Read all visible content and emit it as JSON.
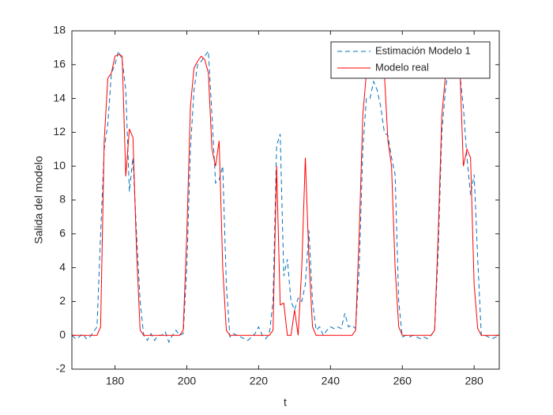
{
  "chart_data": {
    "type": "line",
    "xlabel": "t",
    "ylabel": "Salida del modelo",
    "x": [
      168,
      169,
      170,
      171,
      172,
      173,
      174,
      175,
      176,
      177,
      178,
      179,
      180,
      181,
      182,
      183,
      184,
      185,
      186,
      187,
      188,
      189,
      190,
      191,
      192,
      193,
      194,
      195,
      196,
      197,
      198,
      199,
      200,
      201,
      202,
      203,
      204,
      205,
      206,
      207,
      208,
      209,
      210,
      211,
      212,
      213,
      214,
      215,
      216,
      217,
      218,
      219,
      220,
      221,
      222,
      223,
      224,
      225,
      226,
      227,
      228,
      229,
      230,
      231,
      232,
      233,
      234,
      235,
      236,
      237,
      238,
      239,
      240,
      241,
      242,
      243,
      244,
      245,
      246,
      247,
      248,
      249,
      250,
      251,
      252,
      253,
      254,
      255,
      256,
      257,
      258,
      259,
      260,
      261,
      262,
      263,
      264,
      265,
      266,
      267,
      268,
      269,
      270,
      271,
      272,
      273,
      274,
      275,
      276,
      277,
      278,
      279,
      280,
      281,
      282,
      283,
      284,
      285,
      286,
      287
    ],
    "series": [
      {
        "name": "Estimación Modelo 1",
        "color": "#0072bd",
        "dashed": true,
        "values": [
          0,
          -0.2,
          -0.1,
          0.1,
          -0.2,
          -0.1,
          0.2,
          0.5,
          6,
          11,
          12.5,
          15.5,
          16,
          16.8,
          16.3,
          14.5,
          8.5,
          10.5,
          6,
          2,
          0,
          -0.3,
          0.1,
          -0.3,
          0,
          0,
          0.2,
          -0.4,
          0,
          0.3,
          0,
          0.1,
          4,
          11,
          14.5,
          16,
          16.2,
          16.5,
          16.8,
          13,
          9,
          9.2,
          10,
          3,
          -0.1,
          0.1,
          0,
          -0.1,
          -0.2,
          -0.3,
          -0.1,
          0.1,
          0.5,
          0,
          -0.2,
          0.1,
          2,
          11.2,
          11.9,
          3.5,
          4.5,
          2,
          1.5,
          2.2,
          2,
          3,
          6.2,
          2,
          0.3,
          0.5,
          0,
          0.3,
          0.5,
          0.4,
          0.5,
          0.4,
          1.3,
          0.5,
          0.6,
          0.4,
          4,
          11,
          14,
          14,
          15,
          14.5,
          13.5,
          12,
          11.8,
          10.5,
          9.5,
          2,
          -0.1,
          0,
          -0.1,
          0,
          -0.1,
          -0.2,
          -0.1,
          -0.2,
          0,
          0.3,
          5,
          12,
          14.5,
          16,
          16.5,
          16,
          15.5,
          13.5,
          10.5,
          8.3,
          9.5,
          4.5,
          0,
          0,
          -0.1,
          -0.2,
          -0.1,
          -0.1
        ]
      },
      {
        "name": "Modelo real",
        "color": "#ff0000",
        "dashed": false,
        "values": [
          0,
          0,
          0,
          0,
          0,
          0,
          0,
          0,
          0.5,
          11.5,
          15.2,
          15.5,
          16.5,
          16.6,
          16.5,
          9.4,
          12.2,
          11.7,
          5,
          0.3,
          0,
          0,
          0,
          0,
          0,
          0,
          0,
          0,
          0,
          0,
          0,
          0.3,
          6,
          13.5,
          15.8,
          16.2,
          16.5,
          16.3,
          15.5,
          11,
          10,
          11.5,
          4,
          0.3,
          0,
          0,
          0,
          0,
          0,
          0,
          0,
          0,
          0,
          0,
          0,
          0,
          0.3,
          10,
          1.8,
          1.9,
          0,
          0,
          1.5,
          0,
          4,
          10.5,
          4.5,
          0.5,
          0,
          0,
          0,
          0,
          0,
          0,
          0,
          0,
          0,
          0,
          0,
          0.3,
          6,
          13,
          15.5,
          16,
          16,
          16,
          16,
          15.5,
          11.5,
          10,
          4,
          0.5,
          0,
          0,
          0,
          0,
          0,
          0,
          0,
          0,
          0,
          0.3,
          6,
          13,
          15.3,
          16,
          16.5,
          16.3,
          16,
          10,
          11,
          10.5,
          3,
          0.4,
          0,
          0,
          0,
          0,
          0,
          0
        ]
      }
    ],
    "xlim": [
      168,
      287
    ],
    "ylim": [
      -2,
      18
    ],
    "xticks": [
      180,
      200,
      220,
      240,
      260,
      280
    ],
    "yticks": [
      -2,
      0,
      2,
      4,
      6,
      8,
      10,
      12,
      14,
      16,
      18
    ],
    "legend": "northeast"
  }
}
